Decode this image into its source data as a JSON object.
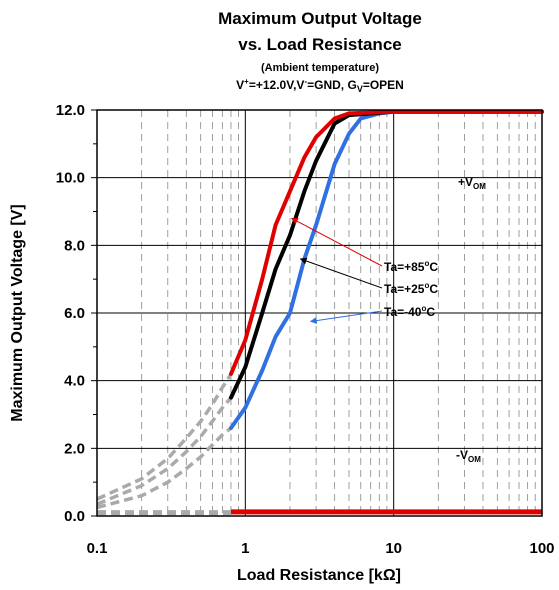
{
  "chart_data": {
    "type": "line",
    "title_line1": "Maximum Output Voltage",
    "title_line2": "vs. Load Resistance",
    "subtitle": "(Ambient temperature)",
    "conditions": {
      "v_plus": "V",
      "v_plus_sup": "+",
      "v_plus_val": "=+12.0V,V",
      "v_minus_sup": "-",
      "v_minus_val": "=GND, G",
      "g_sub": "V",
      "g_val": "=OPEN"
    },
    "xlabel": "Load Resistance [kΩ]",
    "ylabel": "Maximum Output Voltage [V]",
    "x_scale": "log",
    "xlim": [
      0.1,
      100
    ],
    "ylim": [
      0,
      12
    ],
    "x_ticks": [
      "0.1",
      "1",
      "10",
      "100"
    ],
    "y_ticks": [
      "0.0",
      "2.0",
      "4.0",
      "6.0",
      "8.0",
      "10.0",
      "12.0"
    ],
    "grid": true,
    "annotations": {
      "vom_plus": {
        "base": "+V",
        "sub": "OM"
      },
      "vom_minus": {
        "base": "-V",
        "sub": "OM"
      }
    },
    "series": [
      {
        "name": "Ta=+85°C",
        "label_base": "Ta=+85",
        "label_sup": "o",
        "label_unit": "C",
        "color": "#e00000",
        "high": [
          [
            0.8,
            4.2
          ],
          [
            1.0,
            5.2
          ],
          [
            1.3,
            7.0
          ],
          [
            1.6,
            8.6
          ],
          [
            2.0,
            9.6
          ],
          [
            2.5,
            10.6
          ],
          [
            3.0,
            11.2
          ],
          [
            4.0,
            11.75
          ],
          [
            5.0,
            11.9
          ],
          [
            10,
            11.95
          ],
          [
            100,
            11.95
          ]
        ],
        "low": [
          [
            0.8,
            0.12
          ],
          [
            100,
            0.12
          ]
        ],
        "extrapolated": [
          [
            0.1,
            0.5
          ],
          [
            0.2,
            1.1
          ],
          [
            0.3,
            1.7
          ],
          [
            0.4,
            2.3
          ],
          [
            0.5,
            2.8
          ],
          [
            0.6,
            3.3
          ],
          [
            0.7,
            3.8
          ],
          [
            0.8,
            4.2
          ]
        ]
      },
      {
        "name": "Ta=+25°C",
        "label_base": "Ta=+25",
        "label_sup": "o",
        "label_unit": "C",
        "color": "#000000",
        "high": [
          [
            0.8,
            3.5
          ],
          [
            1.0,
            4.4
          ],
          [
            1.3,
            6.0
          ],
          [
            1.6,
            7.3
          ],
          [
            2.0,
            8.3
          ],
          [
            2.5,
            9.6
          ],
          [
            3.0,
            10.5
          ],
          [
            4.0,
            11.6
          ],
          [
            5.0,
            11.85
          ],
          [
            10,
            11.95
          ],
          [
            100,
            11.95
          ]
        ],
        "low": [],
        "extrapolated": [
          [
            0.1,
            0.35
          ],
          [
            0.2,
            0.9
          ],
          [
            0.3,
            1.4
          ],
          [
            0.4,
            1.9
          ],
          [
            0.5,
            2.35
          ],
          [
            0.6,
            2.8
          ],
          [
            0.7,
            3.2
          ],
          [
            0.8,
            3.5
          ]
        ]
      },
      {
        "name": "Ta=-40°C",
        "label_base": "Ta=-40",
        "label_sup": "o",
        "label_unit": "C",
        "color": "#3070e0",
        "high": [
          [
            0.8,
            2.6
          ],
          [
            1.0,
            3.2
          ],
          [
            1.3,
            4.3
          ],
          [
            1.6,
            5.3
          ],
          [
            2.0,
            6.0
          ],
          [
            2.5,
            7.6
          ],
          [
            3.0,
            8.6
          ],
          [
            4.0,
            10.4
          ],
          [
            5.0,
            11.3
          ],
          [
            6.0,
            11.75
          ],
          [
            8.0,
            11.9
          ],
          [
            10,
            11.95
          ],
          [
            100,
            11.95
          ]
        ],
        "low": [],
        "extrapolated": [
          [
            0.1,
            0.25
          ],
          [
            0.2,
            0.6
          ],
          [
            0.3,
            1.0
          ],
          [
            0.4,
            1.4
          ],
          [
            0.5,
            1.75
          ],
          [
            0.6,
            2.1
          ],
          [
            0.7,
            2.4
          ],
          [
            0.8,
            2.6
          ]
        ]
      }
    ],
    "low_extrapolated_value": 0.1
  }
}
